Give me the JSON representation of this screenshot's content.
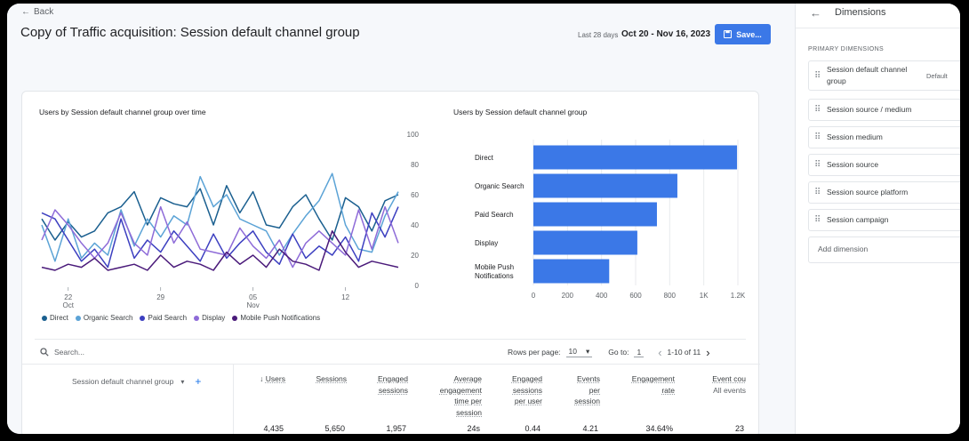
{
  "header": {
    "back_label": "Back",
    "title": "Copy of Traffic acquisition: Session default channel group",
    "date_last": "Last 28 days",
    "date_range": "Oct 20 - Nov 16, 2023",
    "save_label": "Save..."
  },
  "line_chart": {
    "title": "Users by Session default channel group over time",
    "y_ticks": [
      "100",
      "80",
      "60",
      "40",
      "20",
      "0"
    ],
    "x_ticks": [
      {
        "day": "22",
        "month": "Oct"
      },
      {
        "day": "29",
        "month": ""
      },
      {
        "day": "05",
        "month": "Nov"
      },
      {
        "day": "12",
        "month": ""
      }
    ]
  },
  "bar_chart": {
    "title": "Users by Session default channel group",
    "x_ticks": [
      "0",
      "200",
      "400",
      "600",
      "800",
      "1K",
      "1.2K"
    ]
  },
  "chart_data": [
    {
      "type": "line",
      "title": "Users by Session default channel group over time",
      "x": [
        "Oct 20",
        "Oct 21",
        "Oct 22",
        "Oct 23",
        "Oct 24",
        "Oct 25",
        "Oct 26",
        "Oct 27",
        "Oct 28",
        "Oct 29",
        "Oct 30",
        "Oct 31",
        "Nov 01",
        "Nov 02",
        "Nov 03",
        "Nov 04",
        "Nov 05",
        "Nov 06",
        "Nov 07",
        "Nov 08",
        "Nov 09",
        "Nov 10",
        "Nov 11",
        "Nov 12",
        "Nov 13",
        "Nov 14",
        "Nov 15",
        "Nov 16"
      ],
      "ylim": [
        0,
        100
      ],
      "series": [
        {
          "name": "Direct",
          "color": "#1a5f8f",
          "values": [
            44,
            30,
            42,
            32,
            36,
            48,
            52,
            62,
            40,
            58,
            54,
            52,
            64,
            40,
            66,
            48,
            62,
            40,
            38,
            52,
            60,
            44,
            30,
            58,
            52,
            36,
            56,
            60
          ]
        },
        {
          "name": "Organic Search",
          "color": "#5ba3d6",
          "values": [
            40,
            16,
            44,
            18,
            28,
            20,
            50,
            26,
            44,
            32,
            46,
            40,
            72,
            52,
            60,
            44,
            40,
            36,
            20,
            34,
            46,
            56,
            74,
            40,
            24,
            22,
            46,
            62
          ]
        },
        {
          "name": "Paid Search",
          "color": "#3c3fc0",
          "values": [
            48,
            44,
            30,
            16,
            24,
            12,
            44,
            18,
            30,
            22,
            36,
            26,
            16,
            34,
            18,
            28,
            36,
            22,
            14,
            34,
            18,
            26,
            20,
            32,
            16,
            48,
            32,
            52
          ]
        },
        {
          "name": "Display",
          "color": "#8e6bd8",
          "values": [
            30,
            50,
            40,
            28,
            18,
            28,
            48,
            28,
            20,
            52,
            28,
            42,
            24,
            22,
            20,
            38,
            26,
            18,
            30,
            12,
            28,
            36,
            28,
            20,
            50,
            24,
            52,
            28
          ]
        },
        {
          "name": "Mobile Push Notifications",
          "color": "#4a1a7a",
          "values": [
            12,
            10,
            14,
            12,
            18,
            10,
            12,
            14,
            10,
            20,
            12,
            16,
            14,
            10,
            22,
            14,
            20,
            12,
            24,
            16,
            14,
            10,
            36,
            22,
            12,
            16,
            14,
            12
          ]
        }
      ]
    },
    {
      "type": "bar",
      "title": "Users by Session default channel group",
      "categories": [
        "Direct",
        "Organic Search",
        "Paid Search",
        "Display",
        "Mobile Push Notifications"
      ],
      "values": [
        1195,
        845,
        725,
        610,
        445
      ],
      "xlim": [
        0,
        1200
      ],
      "color": "#3b78e7"
    }
  ],
  "table": {
    "search_placeholder": "Search...",
    "rows_per_page_label": "Rows per page:",
    "rows_per_page_value": "10",
    "goto_label": "Go to:",
    "goto_value": "1",
    "range_label": "1-10 of 11",
    "dimension_header": "Session default channel group",
    "columns": [
      {
        "label": "↓ Users",
        "lines": [
          "Users"
        ],
        "sorted": true,
        "value": "4,435"
      },
      {
        "label": "Sessions",
        "lines": [
          "Sessions"
        ],
        "value": "5,650"
      },
      {
        "label": "Engaged sessions",
        "lines": [
          "Engaged",
          "sessions"
        ],
        "value": "1,957"
      },
      {
        "label": "Average engagement time per session",
        "lines": [
          "Average",
          "engagement",
          "time per",
          "session"
        ],
        "value": "24s"
      },
      {
        "label": "Engaged sessions per user",
        "lines": [
          "Engaged",
          "sessions",
          "per user"
        ],
        "value": "0.44"
      },
      {
        "label": "Events per session",
        "lines": [
          "Events",
          "per",
          "session"
        ],
        "value": "4.21"
      },
      {
        "label": "Engagement rate",
        "lines": [
          "Engagement",
          "rate"
        ],
        "value": "34.64%"
      },
      {
        "label": "Event count",
        "lines": [
          "Event cou"
        ],
        "sub": "All events",
        "value": "23"
      }
    ]
  },
  "sidebar": {
    "title": "Dimensions",
    "section_label": "PRIMARY DIMENSIONS",
    "dimensions": [
      {
        "label": "Session default channel group",
        "badge": "Default"
      },
      {
        "label": "Session source / medium",
        "badge": ""
      },
      {
        "label": "Session medium",
        "badge": ""
      },
      {
        "label": "Session source",
        "badge": ""
      },
      {
        "label": "Session source platform",
        "badge": ""
      },
      {
        "label": "Session campaign",
        "badge": ""
      }
    ],
    "add_label": "Add dimension"
  }
}
